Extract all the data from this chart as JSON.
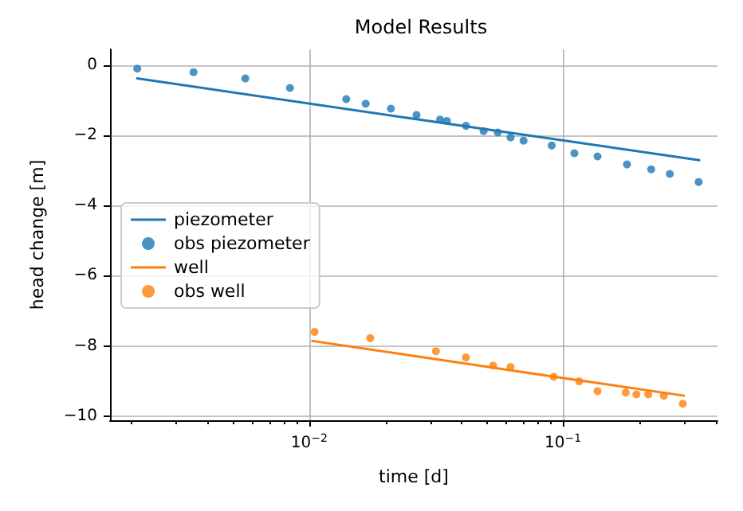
{
  "chart_data": {
    "type": "line",
    "title": "Model Results",
    "xlabel": "time [d]",
    "ylabel": "head change [m]",
    "log": "x",
    "grid": true,
    "legend": "left",
    "line_style": "solid",
    "xlim": [
      0.00164,
      0.407
    ],
    "ylim": [
      -10.12,
      0.45
    ],
    "xticks": [
      {
        "value": 0.002,
        "label": null
      },
      {
        "value": 0.003,
        "label": null
      },
      {
        "value": 0.004,
        "label": null
      },
      {
        "value": 0.005,
        "label": null
      },
      {
        "value": 0.006,
        "label": null
      },
      {
        "value": 0.007,
        "label": null
      },
      {
        "value": 0.008,
        "label": null
      },
      {
        "value": 0.009,
        "label": null
      },
      {
        "value": 0.01,
        "label": "10$^{−2}$"
      },
      {
        "value": 0.02,
        "label": null
      },
      {
        "value": 0.03,
        "label": null
      },
      {
        "value": 0.04,
        "label": null
      },
      {
        "value": 0.05,
        "label": null
      },
      {
        "value": 0.06,
        "label": null
      },
      {
        "value": 0.07,
        "label": null
      },
      {
        "value": 0.08,
        "label": null
      },
      {
        "value": 0.09,
        "label": null
      },
      {
        "value": 0.1,
        "label": "10$^{−1}$"
      },
      {
        "value": 0.2,
        "label": null
      },
      {
        "value": 0.3,
        "label": null
      },
      {
        "value": 0.4,
        "label": null
      }
    ],
    "yticks": [
      {
        "value": 0,
        "label": "0"
      },
      {
        "value": -2,
        "label": "−2"
      },
      {
        "value": -4,
        "label": "−4"
      },
      {
        "value": -6,
        "label": "−6"
      },
      {
        "value": -8,
        "label": "−8"
      },
      {
        "value": -10,
        "label": "−10"
      }
    ],
    "series": [
      {
        "name": "piezometer",
        "marker": "none",
        "color": "#1f77b4",
        "x": [
          0.0021,
          0.0265,
          0.345
        ],
        "values": [
          -0.38,
          -1.54,
          -2.71
        ]
      },
      {
        "name": "obs piezometer",
        "type": "scatter",
        "marker": "circle",
        "color": "#1f77b4",
        "x": [
          0.0021,
          0.0035,
          0.0056,
          0.0084,
          0.014,
          0.0167,
          0.021,
          0.0265,
          0.0328,
          0.0349,
          0.0415,
          0.0487,
          0.0554,
          0.0622,
          0.07,
          0.0904,
          0.111,
          0.137,
          0.179,
          0.223,
          0.264,
          0.343
        ],
        "values": [
          -0.1,
          -0.2,
          -0.38,
          -0.65,
          -0.97,
          -1.1,
          -1.24,
          -1.42,
          -1.55,
          -1.59,
          -1.73,
          -1.88,
          -1.92,
          -2.06,
          -2.15,
          -2.29,
          -2.51,
          -2.6,
          -2.83,
          -2.97,
          -3.1,
          -3.33
        ]
      },
      {
        "name": "well",
        "marker": "none",
        "color": "#ff7f0e",
        "x": [
          0.0103,
          0.091,
          0.3
        ],
        "values": [
          -7.86,
          -8.87,
          -9.42
        ]
      },
      {
        "name": "obs well",
        "type": "scatter",
        "marker": "circle",
        "color": "#ff7f0e",
        "x": [
          0.0105,
          0.0174,
          0.0316,
          0.0415,
          0.0531,
          0.0622,
          0.092,
          0.116,
          0.137,
          0.177,
          0.195,
          0.217,
          0.25,
          0.297
        ],
        "values": [
          -7.6,
          -7.78,
          -8.15,
          -8.33,
          -8.56,
          -8.6,
          -8.88,
          -9.01,
          -9.29,
          -9.33,
          -9.38,
          -9.38,
          -9.42,
          -9.65
        ]
      }
    ]
  }
}
